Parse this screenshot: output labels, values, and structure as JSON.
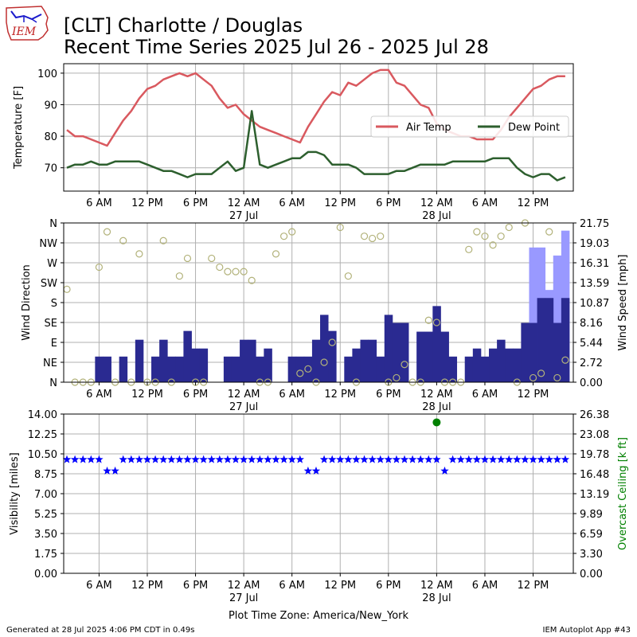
{
  "title_line1": "[CLT] Charlotte / Douglas",
  "title_line2": "Recent Time Series 2025 Jul 26 - 2025 Jul 28",
  "logo_text": "IEM",
  "footer_left": "Generated at 28 Jul 2025 4:06 PM CDT in 0.49s",
  "footer_right": "IEM Autoplot App #43",
  "xaxis_label": "Plot Time Zone: America/New_York",
  "time_ticks": [
    "6 AM",
    "12 PM",
    "6 PM",
    "12 AM",
    "6 AM",
    "12 PM",
    "6 PM",
    "12 AM",
    "6 AM",
    "12 PM"
  ],
  "date_ticks": [
    "27 Jul",
    "28 Jul"
  ],
  "colors": {
    "air_temp": "#d9595f",
    "dew_point": "#2d5f2e",
    "wind_speed_bar": "#2a2a91",
    "wind_gust_bar": "#9999ff",
    "wind_dir_marker": "#b2b27a",
    "visibility": "#0000ff",
    "ceiling": "#008000"
  },
  "chart_data": [
    {
      "type": "line",
      "ylabel": "Temperature [F]",
      "ylim": [
        62.6,
        103
      ],
      "yticks": [
        70,
        80,
        90,
        100
      ],
      "grid": true,
      "legend_position": "center-right",
      "x_hours_since_jul26_midnight": [
        2.0,
        3.0,
        4.0,
        5.0,
        6.0,
        7.0,
        8.0,
        9.0,
        10.0,
        11.0,
        12.0,
        13.0,
        14.0,
        15.0,
        16.0,
        17.0,
        18.0,
        19.0,
        20.0,
        21.0,
        22.0,
        23.0,
        24.0,
        25.0,
        26.0,
        27.0,
        28.0,
        29.0,
        30.0,
        31.0,
        32.0,
        33.0,
        34.0,
        35.0,
        36.0,
        37.0,
        38.0,
        39.0,
        40.0,
        41.0,
        42.0,
        43.0,
        44.0,
        45.0,
        46.0,
        47.0,
        48.0,
        49.0,
        50.0,
        51.0,
        52.0,
        53.0,
        54.0,
        55.0,
        56.0,
        57.0,
        58.0,
        59.0,
        60.0,
        61.0,
        62.0,
        63.0,
        64.0
      ],
      "series": [
        {
          "name": "Air Temp",
          "values": [
            82,
            80,
            80,
            79,
            78,
            77,
            81,
            85,
            88,
            92,
            95,
            96,
            98,
            99,
            100,
            99,
            100,
            98,
            96,
            92,
            89,
            90,
            87,
            85,
            83,
            82,
            81,
            80,
            79,
            78,
            83,
            87,
            91,
            94,
            93,
            97,
            96,
            98,
            100,
            101,
            101,
            97,
            96,
            93,
            90,
            89,
            84,
            82,
            81,
            80,
            80,
            79,
            79,
            79,
            82,
            86,
            89,
            92,
            95,
            96,
            98,
            99,
            99
          ]
        },
        {
          "name": "Dew Point",
          "values": [
            70,
            71,
            71,
            72,
            71,
            71,
            72,
            72,
            72,
            72,
            71,
            70,
            69,
            69,
            68,
            67,
            68,
            68,
            68,
            70,
            72,
            69,
            70,
            88,
            71,
            70,
            71,
            72,
            73,
            73,
            75,
            75,
            74,
            71,
            71,
            71,
            70,
            68,
            68,
            68,
            68,
            69,
            69,
            70,
            71,
            71,
            71,
            71,
            72,
            72,
            72,
            72,
            72,
            73,
            73,
            73,
            70,
            68,
            67,
            68,
            68,
            66,
            67
          ]
        }
      ]
    },
    {
      "type": "bar",
      "ylabel": "Wind Direction",
      "y2label": "Wind Speed [mph]",
      "ylim": [
        0,
        360
      ],
      "y2lim": [
        0,
        21.75
      ],
      "yticklabels": [
        "N",
        "NE",
        "E",
        "SE",
        "S",
        "SW",
        "W",
        "NW",
        "N"
      ],
      "y2ticks": [
        "0.00",
        "2.72",
        "5.44",
        "8.16",
        "10.87",
        "13.59",
        "16.31",
        "19.03",
        "21.75"
      ],
      "grid": true,
      "x_hours_since_jul26_midnight": [
        2.0,
        3.0,
        4.0,
        5.0,
        6.0,
        7.0,
        8.0,
        9.0,
        10.0,
        11.0,
        12.0,
        13.0,
        14.0,
        15.0,
        16.0,
        17.0,
        18.0,
        19.0,
        20.0,
        21.0,
        22.0,
        23.0,
        24.0,
        25.0,
        26.0,
        27.0,
        28.0,
        29.0,
        30.0,
        31.0,
        32.0,
        33.0,
        34.0,
        35.0,
        36.0,
        37.0,
        38.0,
        39.0,
        40.0,
        41.0,
        42.0,
        43.0,
        44.0,
        45.0,
        46.0,
        47.0,
        48.0,
        49.0,
        50.0,
        51.0,
        52.0,
        53.0,
        54.0,
        55.0,
        56.0,
        57.0,
        58.0,
        59.0,
        60.0,
        61.0,
        62.0,
        63.0,
        64.0
      ],
      "series": [
        {
          "name": "Wind Speed",
          "values": [
            0,
            0,
            0,
            0,
            3.5,
            3.5,
            0,
            3.5,
            0,
            5.8,
            0,
            3.5,
            5.8,
            3.5,
            3.5,
            7.0,
            4.6,
            4.6,
            0,
            0,
            3.5,
            3.5,
            5.8,
            5.8,
            3.5,
            4.6,
            0,
            0,
            3.5,
            3.5,
            3.5,
            5.8,
            9.2,
            7.0,
            0,
            3.5,
            4.6,
            5.8,
            5.8,
            3.5,
            9.2,
            8.1,
            8.1,
            0,
            6.9,
            6.9,
            10.4,
            6.9,
            3.5,
            0,
            3.5,
            4.6,
            3.5,
            4.6,
            5.8,
            4.6,
            4.6,
            8.1,
            8.1,
            11.5,
            11.5,
            8.1,
            11.5
          ]
        },
        {
          "name": "Wind Gust",
          "values": [
            0,
            0,
            0,
            0,
            0,
            0,
            0,
            0,
            0,
            0,
            0,
            0,
            0,
            0,
            0,
            0,
            0,
            0,
            0,
            0,
            0,
            0,
            0,
            0,
            0,
            0,
            0,
            0,
            0,
            0,
            0,
            0,
            0,
            0,
            0,
            0,
            0,
            0,
            0,
            0,
            0,
            0,
            0,
            0,
            0,
            0,
            0,
            0,
            0,
            0,
            0,
            0,
            0,
            0,
            0,
            0,
            0,
            0,
            18.4,
            18.4,
            12.6,
            17.3,
            20.7
          ]
        },
        {
          "name": "Wind Direction",
          "values": [
            210,
            0,
            0,
            0,
            260,
            340,
            0,
            320,
            0,
            290,
            0,
            0,
            320,
            0,
            240,
            280,
            0,
            0,
            280,
            260,
            250,
            250,
            250,
            230,
            0,
            0,
            290,
            330,
            340,
            20,
            30,
            0,
            45,
            90,
            350,
            240,
            0,
            330,
            325,
            330,
            0,
            10,
            40,
            0,
            0,
            140,
            135,
            0,
            0,
            0,
            300,
            340,
            330,
            310,
            330,
            350,
            0,
            360,
            10,
            20,
            340,
            10,
            50
          ]
        }
      ]
    },
    {
      "type": "scatter",
      "ylabel": "Visibility [miles]",
      "y2label": "Overcast Ceiling [k ft]",
      "ylim": [
        0,
        14
      ],
      "y2lim": [
        0,
        26.38
      ],
      "yticks": [
        "0.00",
        "1.75",
        "3.50",
        "5.25",
        "7.00",
        "8.75",
        "10.50",
        "12.25",
        "14.00"
      ],
      "y2ticks": [
        "0.00",
        "3.30",
        "6.59",
        "9.89",
        "13.19",
        "16.48",
        "19.78",
        "23.08",
        "26.38"
      ],
      "grid": true,
      "x_hours_since_jul26_midnight": [
        2.0,
        3.0,
        4.0,
        5.0,
        6.0,
        7.0,
        8.0,
        9.0,
        10.0,
        11.0,
        12.0,
        13.0,
        14.0,
        15.0,
        16.0,
        17.0,
        18.0,
        19.0,
        20.0,
        21.0,
        22.0,
        23.0,
        24.0,
        25.0,
        26.0,
        27.0,
        28.0,
        29.0,
        30.0,
        31.0,
        32.0,
        33.0,
        34.0,
        35.0,
        36.0,
        37.0,
        38.0,
        39.0,
        40.0,
        41.0,
        42.0,
        43.0,
        44.0,
        45.0,
        46.0,
        47.0,
        48.0,
        49.0,
        50.0,
        51.0,
        52.0,
        53.0,
        54.0,
        55.0,
        56.0,
        57.0,
        58.0,
        59.0,
        60.0,
        61.0,
        62.0,
        63.0,
        64.0
      ],
      "series": [
        {
          "name": "Visibility",
          "values": [
            10,
            10,
            10,
            10,
            10,
            9,
            9,
            10,
            10,
            10,
            10,
            10,
            10,
            10,
            10,
            10,
            10,
            10,
            10,
            10,
            10,
            10,
            10,
            10,
            10,
            10,
            10,
            10,
            10,
            10,
            9,
            9,
            10,
            10,
            10,
            10,
            10,
            10,
            10,
            10,
            10,
            10,
            10,
            10,
            10,
            10,
            10,
            9,
            10,
            10,
            10,
            10,
            10,
            10,
            10,
            10,
            10,
            10,
            10,
            10,
            10,
            10,
            10
          ]
        },
        {
          "name": "Overcast Ceiling",
          "x": [
            48.0
          ],
          "values": [
            25.0
          ]
        }
      ]
    }
  ]
}
